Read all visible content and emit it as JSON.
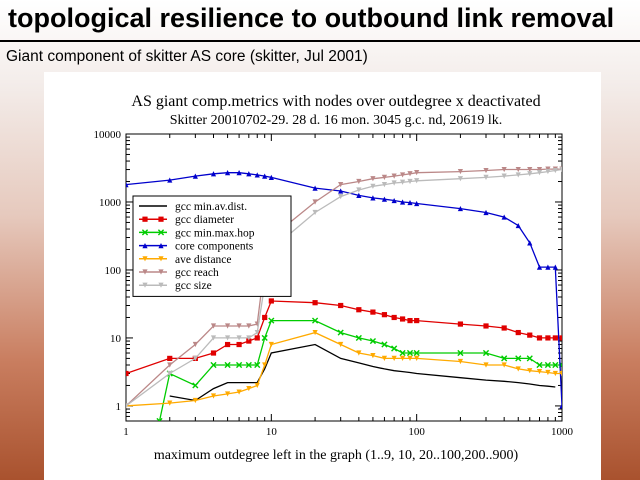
{
  "slide": {
    "title": "topological resilience to outbound link removal",
    "subtitle": "Giant component of skitter AS core (skitter, Jul 2001)"
  },
  "chart_data": {
    "type": "line",
    "title": "AS giant comp.metrics with nodes over outdegree x deactivated",
    "subtitle": "Skitter 20010702-29. 28 d. 16 mon. 3045 g.c. nd, 20619 lk.",
    "xlabel": "maximum outdegree left in the graph (1..9, 10, 20..100,200..900)",
    "ylabel": "",
    "xscale": "log",
    "yscale": "log",
    "xlim": [
      1,
      1000
    ],
    "ylim": [
      0.6,
      10000
    ],
    "x_ticks": [
      1,
      10,
      100,
      1000
    ],
    "y_ticks": [
      1,
      10,
      100,
      1000,
      10000
    ],
    "x_tick_labels": [
      "1",
      "10",
      "100",
      "1000"
    ],
    "y_tick_labels": [
      "1",
      "10",
      "100",
      "1000",
      "10000"
    ],
    "legend_position": "upper-left",
    "series": [
      {
        "name": "gcc min.av.dist.",
        "color": "#000000",
        "marker": "none",
        "x": [
          2,
          3,
          4,
          5,
          6,
          7,
          8,
          9,
          10,
          20,
          30,
          40,
          50,
          60,
          70,
          80,
          90,
          100,
          200,
          300,
          400,
          500,
          600,
          700,
          800,
          900
        ],
        "y": [
          1.4,
          1.2,
          1.8,
          2.2,
          2.2,
          2.2,
          2.2,
          3.5,
          6,
          8,
          5,
          4.3,
          3.8,
          3.5,
          3.3,
          3.2,
          3.1,
          3,
          2.6,
          2.4,
          2.3,
          2.2,
          2.1,
          2.0,
          1.95,
          1.9
        ]
      },
      {
        "name": "gcc diameter",
        "color": "#e00000",
        "marker": "square",
        "x": [
          1,
          2,
          3,
          4,
          5,
          6,
          7,
          8,
          9,
          10,
          20,
          30,
          40,
          50,
          60,
          70,
          80,
          90,
          100,
          200,
          300,
          400,
          500,
          600,
          700,
          800,
          900,
          1000
        ],
        "y": [
          3,
          5,
          5,
          6,
          8,
          8,
          9,
          10,
          20,
          35,
          33,
          30,
          26,
          24,
          22,
          20,
          19,
          18,
          18,
          16,
          15,
          14,
          12,
          11,
          10,
          10,
          10,
          10
        ]
      },
      {
        "name": "gcc min.max.hop",
        "color": "#00cc00",
        "marker": "x",
        "x": [
          1.7,
          2,
          3,
          4,
          5,
          6,
          7,
          8,
          9,
          10,
          20,
          30,
          40,
          50,
          60,
          70,
          80,
          90,
          100,
          200,
          300,
          400,
          500,
          600,
          700,
          800,
          900,
          1000
        ],
        "y": [
          0.6,
          3,
          2,
          4,
          4,
          4,
          4,
          4,
          10,
          18,
          18,
          12,
          10,
          9,
          8,
          7,
          6,
          6,
          6,
          6,
          6,
          5,
          5,
          5,
          4,
          4,
          4,
          4
        ]
      },
      {
        "name": "core components",
        "color": "#0000cc",
        "marker": "triangle",
        "x": [
          1,
          2,
          3,
          4,
          5,
          6,
          7,
          8,
          9,
          10,
          20,
          30,
          40,
          50,
          60,
          70,
          80,
          90,
          100,
          200,
          300,
          400,
          500,
          600,
          700,
          800,
          900,
          1000
        ],
        "y": [
          1800,
          2100,
          2400,
          2600,
          2700,
          2700,
          2600,
          2500,
          2400,
          2300,
          1600,
          1450,
          1250,
          1150,
          1100,
          1050,
          1000,
          980,
          950,
          800,
          700,
          600,
          450,
          250,
          110,
          110,
          110,
          1
        ]
      },
      {
        "name": "ave distance",
        "color": "#ffaa00",
        "marker": "triangle-down",
        "x": [
          1,
          2,
          3,
          4,
          5,
          6,
          7,
          8,
          9,
          10,
          20,
          30,
          40,
          50,
          60,
          70,
          80,
          90,
          100,
          200,
          300,
          400,
          500,
          600,
          700,
          800,
          900,
          1000
        ],
        "y": [
          1,
          1.1,
          1.2,
          1.4,
          1.5,
          1.6,
          1.8,
          2,
          4,
          8,
          12,
          8,
          6,
          5.5,
          5,
          5,
          5,
          5,
          5,
          4.5,
          4,
          4,
          3.5,
          3.3,
          3.2,
          3.1,
          3.0,
          3.0
        ]
      },
      {
        "name": "gcc reach",
        "color": "#bb8888",
        "marker": "triangle-down",
        "x": [
          1,
          2,
          3,
          4,
          5,
          6,
          7,
          8,
          9,
          10,
          20,
          30,
          40,
          50,
          60,
          70,
          80,
          90,
          100,
          200,
          300,
          400,
          500,
          600,
          700,
          800,
          900,
          1000
        ],
        "y": [
          1,
          4,
          8,
          15,
          15,
          15,
          15,
          16,
          120,
          300,
          1000,
          1800,
          2000,
          2200,
          2300,
          2400,
          2500,
          2600,
          2700,
          2800,
          2900,
          3000,
          3000,
          3000,
          3000,
          3045,
          3045,
          3045
        ]
      },
      {
        "name": "gcc size",
        "color": "#bbbbbb",
        "marker": "triangle-down",
        "x": [
          1,
          2,
          3,
          4,
          5,
          6,
          7,
          8,
          9,
          10,
          20,
          30,
          40,
          50,
          60,
          70,
          80,
          90,
          100,
          200,
          300,
          400,
          500,
          600,
          700,
          800,
          900,
          1000
        ],
        "y": [
          1,
          3,
          5,
          10,
          10,
          10,
          10,
          12,
          60,
          200,
          700,
          1200,
          1500,
          1700,
          1800,
          1900,
          1950,
          2000,
          2050,
          2200,
          2300,
          2400,
          2500,
          2600,
          2700,
          2800,
          2900,
          3000
        ]
      }
    ]
  }
}
